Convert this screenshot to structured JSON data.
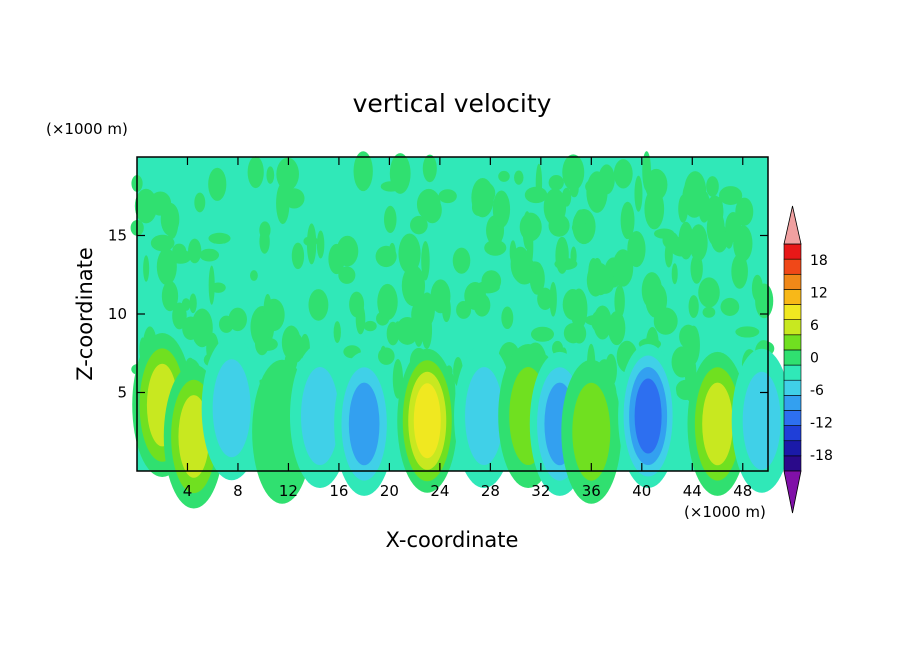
{
  "chart_data": {
    "type": "heatmap",
    "title": "vertical velocity",
    "xlabel": "X-coordinate",
    "ylabel": "Z-coordinate",
    "x_unit": "(×1000 m)",
    "y_unit": "(×1000 m)",
    "xlim": [
      0,
      50
    ],
    "ylim": [
      0,
      20
    ],
    "x_ticks": [
      4,
      8,
      12,
      16,
      20,
      24,
      28,
      32,
      36,
      40,
      44,
      48
    ],
    "y_ticks": [
      5,
      10,
      15
    ],
    "colorbar": {
      "levels": [
        -21,
        -18,
        -15,
        -12,
        -9,
        -6,
        -3,
        0,
        3,
        6,
        9,
        12,
        15,
        18,
        21
      ],
      "tick_labels": [
        -18,
        -12,
        -6,
        0,
        6,
        12,
        18
      ],
      "colors": [
        "#2a0a8a",
        "#1a1aa8",
        "#1f3fd8",
        "#2d6ff0",
        "#33a0f0",
        "#40d0e8",
        "#30e8b8",
        "#30e070",
        "#70e020",
        "#c8e820",
        "#f0e820",
        "#f8b818",
        "#f08818",
        "#f04818",
        "#e81818"
      ],
      "under_color": "#8010a8",
      "over_color": "#f0a0a0"
    },
    "features": [
      {
        "x": 2.0,
        "z": 4.2,
        "value": 9
      },
      {
        "x": 4.5,
        "z": 2.2,
        "value": 7
      },
      {
        "x": 7.5,
        "z": 4.0,
        "value": -4
      },
      {
        "x": 11.5,
        "z": 2.5,
        "value": 3
      },
      {
        "x": 14.5,
        "z": 3.5,
        "value": -4
      },
      {
        "x": 18.0,
        "z": 3.0,
        "value": -9
      },
      {
        "x": 23.0,
        "z": 3.2,
        "value": 11
      },
      {
        "x": 27.5,
        "z": 3.5,
        "value": -4
      },
      {
        "x": 31.0,
        "z": 3.5,
        "value": 5
      },
      {
        "x": 33.5,
        "z": 3.0,
        "value": -7
      },
      {
        "x": 36.0,
        "z": 2.5,
        "value": 4
      },
      {
        "x": 40.5,
        "z": 3.5,
        "value": -11
      },
      {
        "x": 46.0,
        "z": 3.0,
        "value": 9
      },
      {
        "x": 49.5,
        "z": 3.2,
        "value": -6
      }
    ]
  }
}
